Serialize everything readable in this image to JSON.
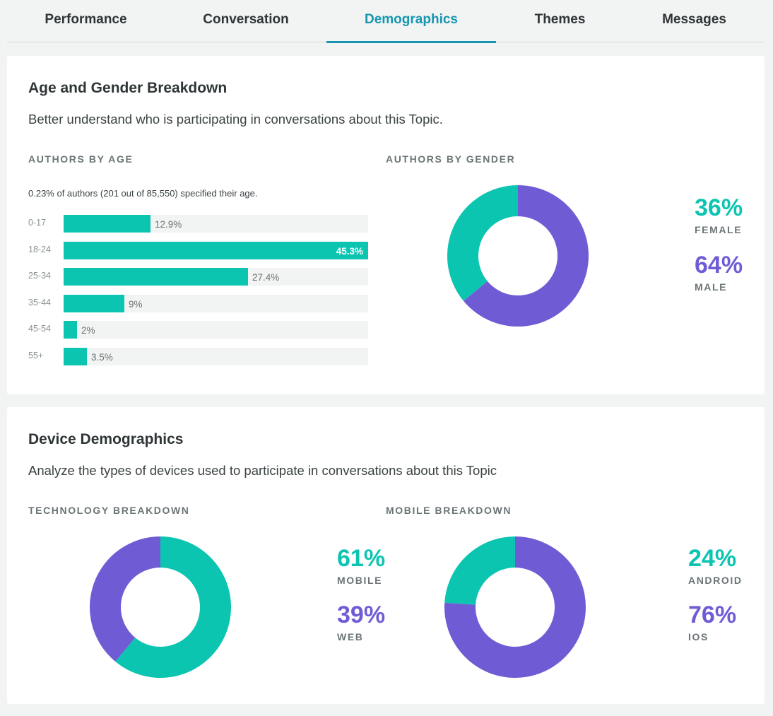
{
  "tabs": [
    {
      "label": "Performance",
      "active": false
    },
    {
      "label": "Conversation",
      "active": false
    },
    {
      "label": "Demographics",
      "active": true
    },
    {
      "label": "Themes",
      "active": false
    },
    {
      "label": "Messages",
      "active": false
    }
  ],
  "colors": {
    "teal": "#0bc5b1",
    "purple": "#6f5cd5",
    "accent": "#1796b0"
  },
  "age_gender": {
    "title": "Age and Gender Breakdown",
    "description": "Better understand who is participating in conversations about this Topic.",
    "age_label": "AUTHORS BY AGE",
    "gender_label": "AUTHORS BY GENDER",
    "age_note": "0.23% of authors (201 out of 85,550) specified their age.",
    "age_rows": [
      {
        "range": "0-17",
        "value_text": "12.9%",
        "percent": 12.9
      },
      {
        "range": "18-24",
        "value_text": "45.3%",
        "percent": 45.3
      },
      {
        "range": "25-34",
        "value_text": "27.4%",
        "percent": 27.4
      },
      {
        "range": "35-44",
        "value_text": "9%",
        "percent": 9
      },
      {
        "range": "45-54",
        "value_text": "2%",
        "percent": 2
      },
      {
        "range": "55+",
        "value_text": "3.5%",
        "percent": 3.5
      }
    ],
    "gender": {
      "female": {
        "value_text": "36%",
        "label": "FEMALE",
        "percent": 36
      },
      "male": {
        "value_text": "64%",
        "label": "MALE",
        "percent": 64
      }
    }
  },
  "device": {
    "title": "Device Demographics",
    "description": "Analyze the types of devices used to participate in conversations about this Topic",
    "tech_label": "TECHNOLOGY BREAKDOWN",
    "mobile_label": "MOBILE BREAKDOWN",
    "tech": {
      "mobile": {
        "value_text": "61%",
        "label": "MOBILE",
        "percent": 61
      },
      "web": {
        "value_text": "39%",
        "label": "WEB",
        "percent": 39
      }
    },
    "mobile": {
      "android": {
        "value_text": "24%",
        "label": "ANDROID",
        "percent": 24
      },
      "ios": {
        "value_text": "76%",
        "label": "IOS",
        "percent": 76
      }
    }
  },
  "chart_data": [
    {
      "type": "bar",
      "orientation": "horizontal",
      "categories": [
        "0-17",
        "18-24",
        "25-34",
        "35-44",
        "45-54",
        "55+"
      ],
      "values": [
        12.9,
        45.3,
        27.4,
        9,
        2,
        3.5
      ],
      "title": "AUTHORS BY AGE"
    },
    {
      "type": "pie",
      "style": "donut",
      "categories": [
        "FEMALE",
        "MALE"
      ],
      "values": [
        36,
        64
      ],
      "title": "AUTHORS BY GENDER"
    },
    {
      "type": "pie",
      "style": "donut",
      "categories": [
        "MOBILE",
        "WEB"
      ],
      "values": [
        61,
        39
      ],
      "title": "TECHNOLOGY BREAKDOWN"
    },
    {
      "type": "pie",
      "style": "donut",
      "categories": [
        "ANDROID",
        "IOS"
      ],
      "values": [
        24,
        76
      ],
      "title": "MOBILE BREAKDOWN"
    }
  ]
}
